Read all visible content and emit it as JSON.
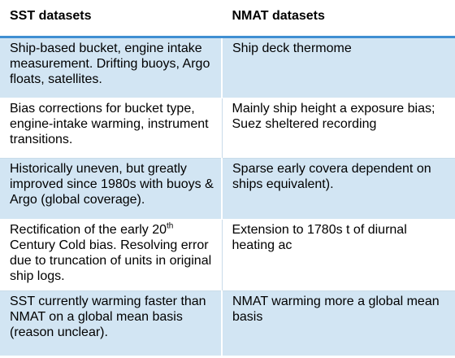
{
  "headers": {
    "sst": "SST datasets",
    "nmat": "NMAT datasets"
  },
  "rows": [
    {
      "sst": "Ship-based bucket, engine intake measurement. Drifting buoys, Argo floats, satellites.",
      "nmat": "Ship deck thermome"
    },
    {
      "sst": "Bias corrections for bucket type, engine-intake warming, instrument transitions.",
      "nmat": "Mainly ship height a exposure bias; Suez sheltered recording"
    },
    {
      "sst": "Historically uneven, but greatly improved since 1980s with buoys & Argo (global coverage).",
      "nmat": "Sparse early covera dependent on ships equivalent)."
    },
    {
      "sst_before_sup": "Rectification of the early 20",
      "sst_sup": "th",
      "sst_after_sup": " Century Cold bias. Resolving error due to truncation of units in original ship logs.",
      "nmat": "Extension to 1780s t of diurnal heating ac"
    },
    {
      "sst": "SST currently warming faster than NMAT on a global mean basis (reason unclear).",
      "nmat": "NMAT warming more a global mean basis"
    }
  ],
  "colors": {
    "header_rule": "#3f8fd2",
    "shaded_row": "#d2e5f3",
    "plain_row": "#ffffff"
  }
}
